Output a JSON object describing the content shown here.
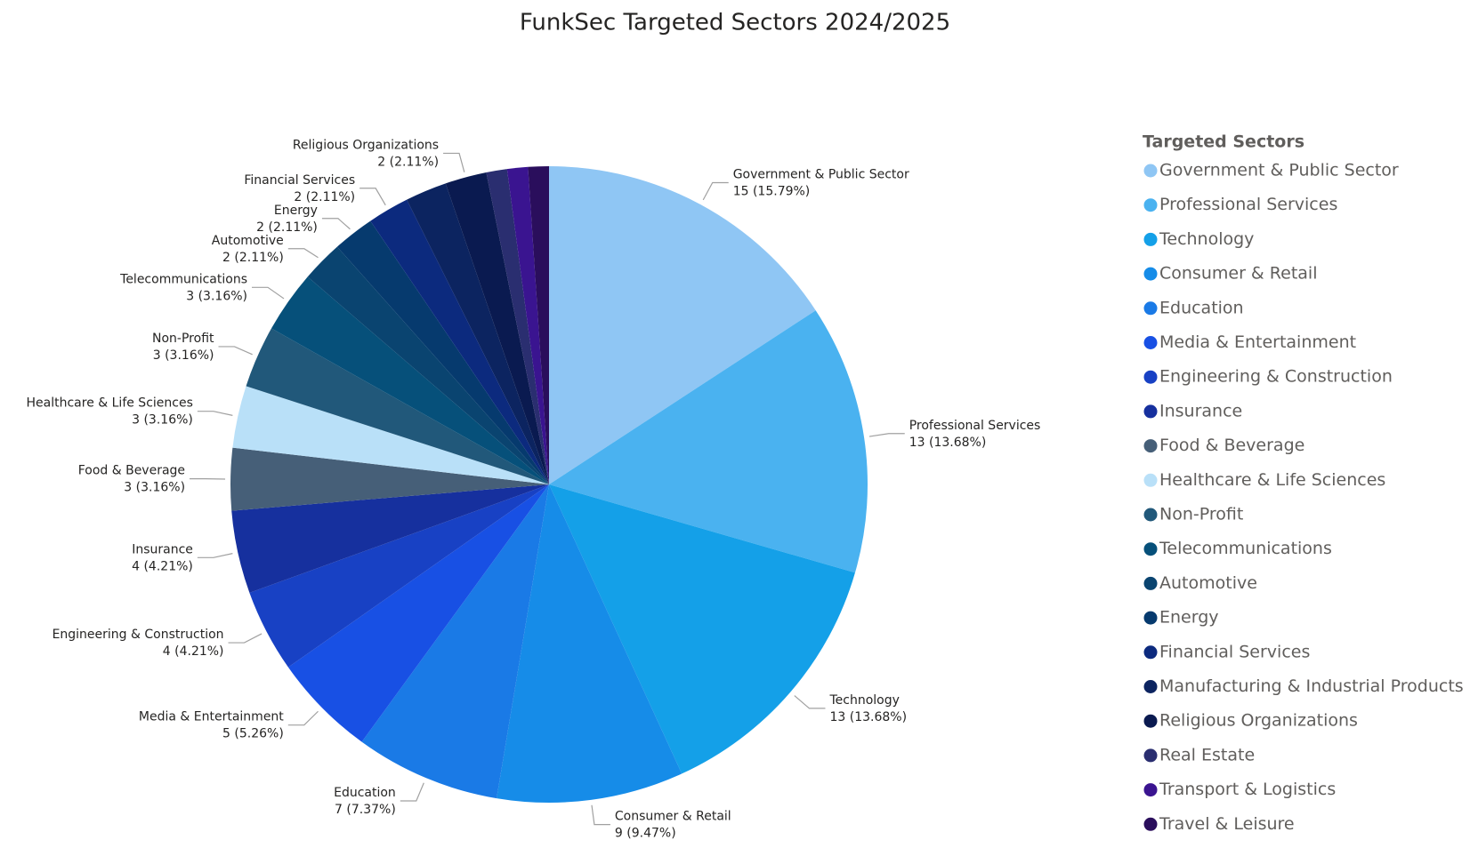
{
  "chart_data": {
    "type": "pie",
    "title": "FunkSec Targeted Sectors 2024/2025",
    "legend_title": "Targeted Sectors",
    "categories": [
      "Government & Public Sector",
      "Professional Services",
      "Technology",
      "Consumer & Retail",
      "Education",
      "Media & Entertainment",
      "Engineering & Construction",
      "Insurance",
      "Food & Beverage",
      "Healthcare & Life Sciences",
      "Non-Profit",
      "Telecommunications",
      "Automotive",
      "Energy",
      "Financial Services",
      "Manufacturing & Industrial Products",
      "Religious Organizations",
      "Real Estate",
      "Transport & Logistics",
      "Travel & Leisure"
    ],
    "values": [
      15,
      13,
      13,
      9,
      7,
      5,
      4,
      4,
      3,
      3,
      3,
      3,
      2,
      2,
      2,
      2,
      2,
      1,
      1,
      1
    ],
    "value_labels": [
      "15 (15.79%)",
      "13 (13.68%)",
      "13 (13.68%)",
      "9 (9.47%)",
      "7 (7.37%)",
      "5 (5.26%)",
      "4 (4.21%)",
      "4 (4.21%)",
      "3 (3.16%)",
      "3 (3.16%)",
      "3 (3.16%)",
      "3 (3.16%)",
      "2 (2.11%)",
      "2 (2.11%)",
      "2 (2.11%)",
      null,
      "2 (2.11%)",
      null,
      null,
      null
    ],
    "colors": [
      "#8fc6f4",
      "#4ab2f0",
      "#14a0e8",
      "#168ce8",
      "#1a7ae6",
      "#1850e4",
      "#1841c4",
      "#16309e",
      "#465f78",
      "#b9e0f8",
      "#21587a",
      "#06507a",
      "#0a4470",
      "#063a6e",
      "#0c2a7e",
      "#0c2460",
      "#0a1a50",
      "#2a2e70",
      "#3a1490",
      "#2a0e5c"
    ]
  }
}
